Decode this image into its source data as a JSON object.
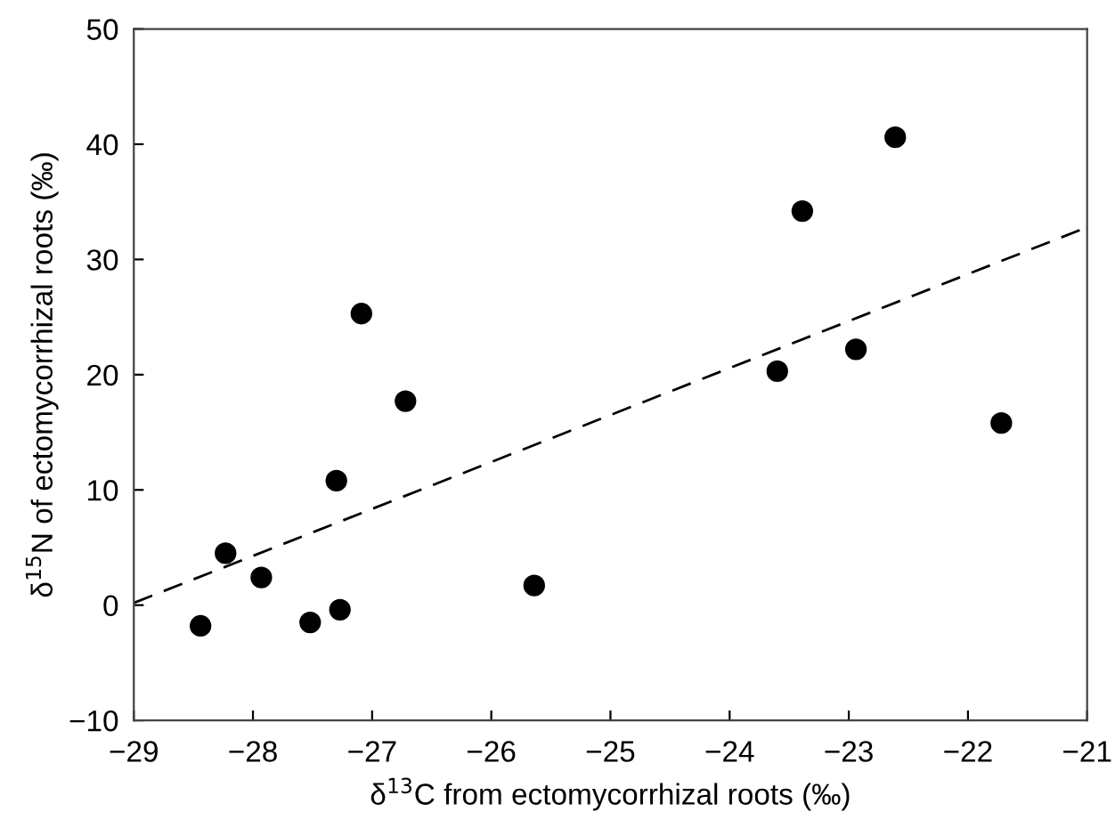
{
  "chart_data": {
    "type": "scatter",
    "xlabel": "δ$^{13}$C from ectomycorrhizal roots (‰)",
    "ylabel": "δ$^{15}$N of ectomycorrhizal roots (‰)",
    "xlim": [
      -29,
      -21
    ],
    "xticks": [
      -29,
      -28,
      -27,
      -26,
      -25,
      -24,
      -23,
      -22,
      -21
    ],
    "ylim": [
      -10,
      50
    ],
    "yticks": [
      -10,
      0,
      10,
      20,
      30,
      40,
      50
    ],
    "grid": false,
    "series": [
      {
        "marker": "circle",
        "color": "#000000",
        "x": [
          -28.44,
          -28.23,
          -27.93,
          -27.52,
          -27.27,
          -27.3,
          -27.09,
          -26.72,
          -25.64,
          -23.6,
          -23.39,
          -22.94,
          -22.61,
          -21.72
        ],
        "values": [
          -1.8,
          4.5,
          2.4,
          -1.5,
          -0.4,
          10.8,
          25.3,
          17.7,
          1.7,
          20.3,
          34.2,
          22.2,
          40.6,
          15.8
        ]
      },
      {
        "type": "line",
        "color": "#000000",
        "line_style": "dashed",
        "x": [
          -29,
          -21
        ],
        "values": [
          0.2,
          32.8
        ]
      }
    ]
  }
}
